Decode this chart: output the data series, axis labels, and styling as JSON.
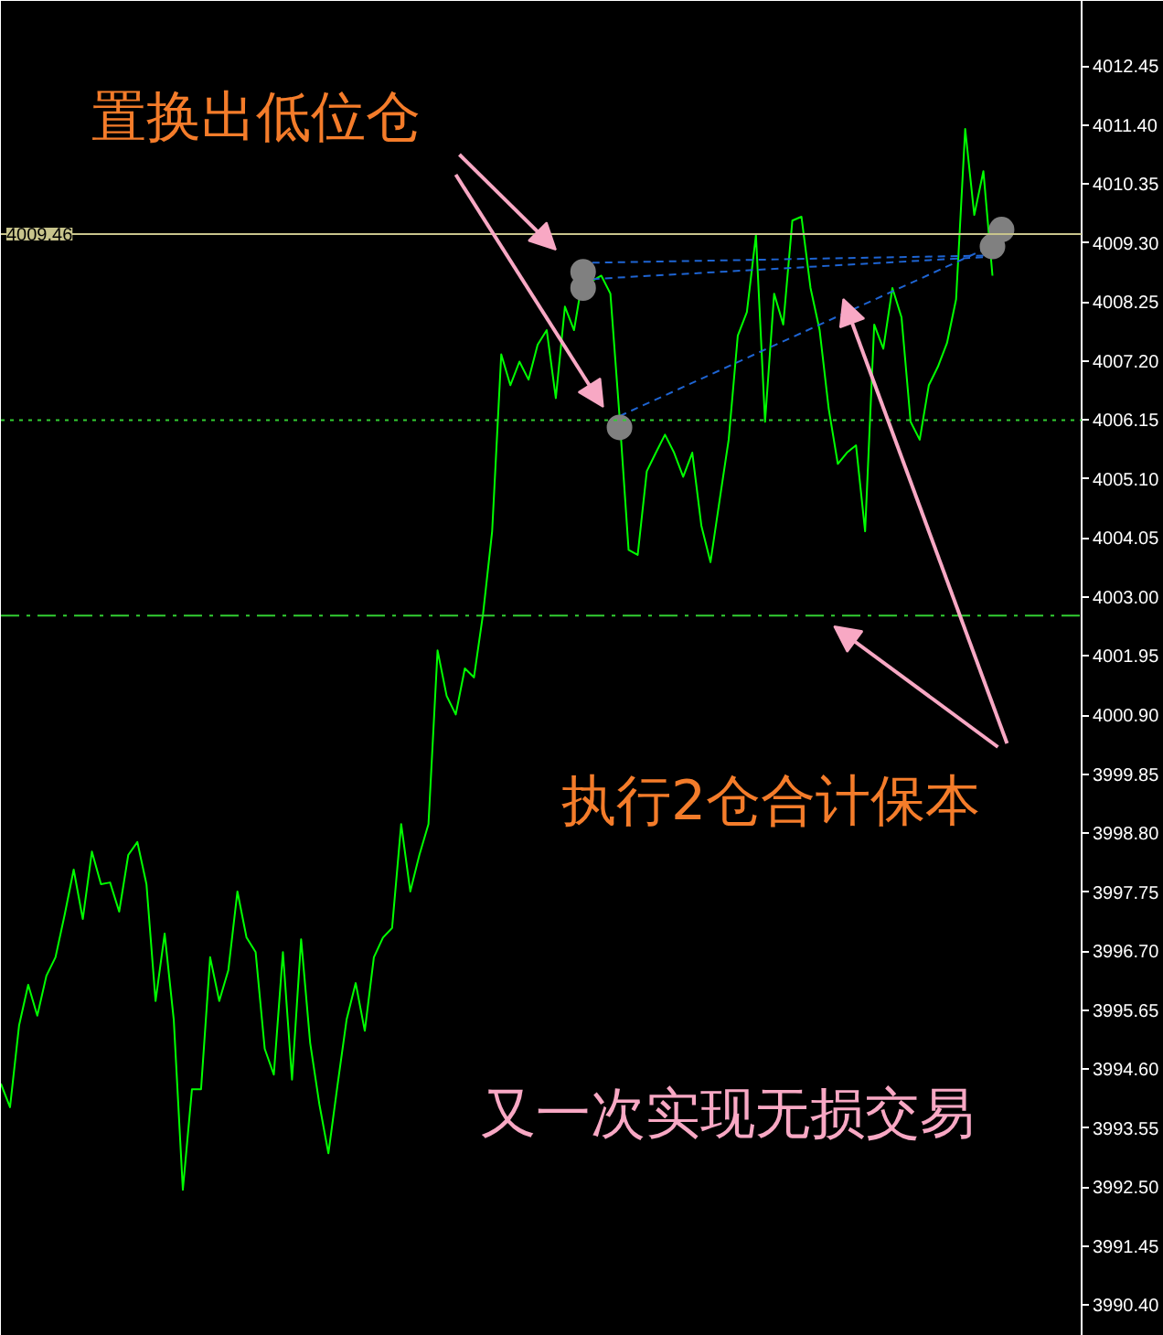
{
  "chart_data": {
    "type": "line",
    "categories": [
      null,
      null,
      null,
      null,
      null,
      null,
      null,
      null,
      null,
      null,
      null,
      null,
      null,
      null,
      null,
      null,
      null,
      null,
      null,
      null,
      null,
      null,
      null,
      null,
      null,
      null,
      null,
      null,
      null,
      null,
      null,
      null,
      null,
      null,
      null,
      null,
      null,
      null,
      null,
      null,
      null,
      null,
      null,
      null,
      null,
      null,
      null,
      null,
      null,
      null,
      null,
      null,
      null,
      null,
      null,
      null,
      null,
      null,
      null,
      null,
      null,
      null,
      null,
      null,
      null,
      null,
      null,
      null,
      null,
      null,
      null,
      null,
      null,
      null,
      null,
      null,
      null,
      null,
      null,
      null,
      null,
      null,
      null,
      null,
      null,
      null,
      null,
      null,
      null,
      null,
      null,
      null,
      null,
      null,
      null,
      null,
      null,
      null,
      null,
      null,
      null,
      null,
      null,
      null,
      null,
      null,
      null,
      null,
      null,
      null,
      null,
      null,
      null,
      null,
      null,
      null,
      null,
      null,
      null
    ],
    "series": [
      {
        "color": "#00ff00",
        "values": [
          3994.34,
          3993.92,
          3995.38,
          3996.1,
          3995.55,
          3996.26,
          3996.59,
          3997.34,
          3998.15,
          3997.27,
          3998.47,
          3997.89,
          3997.92,
          3997.4,
          3998.41,
          3998.64,
          3997.89,
          3995.81,
          3997.01,
          3995.48,
          3992.45,
          3994.24,
          3994.24,
          3996.59,
          3995.81,
          3996.36,
          3997.76,
          3996.94,
          3996.68,
          3994.96,
          3994.5,
          3996.68,
          3994.41,
          3996.91,
          3995.06,
          3993.98,
          3993.1,
          3994.31,
          3995.48,
          3996.13,
          3995.28,
          3996.59,
          3996.94,
          3997.11,
          3998.96,
          3997.76,
          3998.41,
          3998.96,
          4002.05,
          4001.24,
          4000.91,
          4001.73,
          4001.57,
          4002.7,
          4004.17,
          4007.32,
          4006.77,
          4007.19,
          4006.87,
          4007.49,
          4007.75,
          4006.54,
          4008.17,
          4007.75,
          4008.72,
          4008.63,
          4008.72,
          4008.4,
          4006.22,
          4003.84,
          4003.75,
          4005.24,
          4005.57,
          4005.89,
          4005.57,
          4005.14,
          4005.57,
          4004.27,
          4003.62,
          4004.72,
          4005.8,
          4007.65,
          4008.07,
          4009.44,
          4006.12,
          4008.4,
          4007.85,
          4009.7,
          4009.77,
          4008.5,
          4007.75,
          4006.35,
          4005.37,
          4005.57,
          4005.7,
          4004.17,
          4007.85,
          4007.42,
          4008.5,
          4007.98,
          4006.12,
          4005.8,
          4006.77,
          4007.1,
          4007.52,
          4008.3,
          4011.33,
          4009.8,
          4010.58,
          4008.72,
          null,
          null,
          null,
          null,
          null,
          null,
          null,
          null,
          null
        ]
      },
      {
        "type": "line",
        "color": "#1e64d2",
        "line_style": "dashed",
        "values": [
          null,
          null,
          null,
          null,
          null,
          null,
          null,
          null,
          null,
          null,
          null,
          null,
          null,
          null,
          null,
          null,
          null,
          null,
          null,
          null,
          null,
          null,
          null,
          null,
          null,
          null,
          null,
          null,
          null,
          null,
          null,
          null,
          null,
          null,
          null,
          null,
          null,
          null,
          null,
          null,
          null,
          null,
          null,
          null,
          null,
          null,
          null,
          null,
          null,
          null,
          null,
          null,
          null,
          null,
          null,
          null,
          null,
          null,
          null,
          null,
          null,
          null,
          null,
          null,
          null,
          4008.95,
          null,
          null,
          null,
          null,
          null,
          null,
          null,
          null,
          null,
          null,
          null,
          null,
          null,
          null,
          null,
          null,
          null,
          null,
          null,
          null,
          null,
          null,
          null,
          null,
          null,
          null,
          null,
          null,
          null,
          null,
          null,
          null,
          null,
          null,
          null,
          null,
          null,
          null,
          null,
          null,
          null,
          null,
          null,
          4009.08,
          null,
          null,
          null,
          null,
          null,
          null,
          null,
          null,
          null
        ]
      },
      {
        "type": "line",
        "color": "#1e64d2",
        "line_style": "dashed",
        "values": [
          null,
          null,
          null,
          null,
          null,
          null,
          null,
          null,
          null,
          null,
          null,
          null,
          null,
          null,
          null,
          null,
          null,
          null,
          null,
          null,
          null,
          null,
          null,
          null,
          null,
          null,
          null,
          null,
          null,
          null,
          null,
          null,
          null,
          null,
          null,
          null,
          null,
          null,
          null,
          null,
          null,
          null,
          null,
          null,
          null,
          null,
          null,
          null,
          null,
          null,
          null,
          null,
          null,
          null,
          null,
          null,
          null,
          null,
          null,
          null,
          null,
          null,
          null,
          null,
          null,
          4008.66,
          null,
          null,
          null,
          null,
          null,
          null,
          null,
          null,
          null,
          null,
          null,
          null,
          null,
          null,
          null,
          null,
          null,
          null,
          null,
          null,
          null,
          null,
          null,
          null,
          null,
          null,
          null,
          null,
          null,
          null,
          null,
          null,
          null,
          null,
          null,
          null,
          null,
          null,
          null,
          null,
          null,
          null,
          4009.05,
          null,
          null,
          null,
          null,
          null,
          null,
          null,
          null,
          null,
          null
        ]
      },
      {
        "type": "line",
        "color": "#1e64d2",
        "line_style": "dashed",
        "values": [
          null,
          null,
          null,
          null,
          null,
          null,
          null,
          null,
          null,
          null,
          null,
          null,
          null,
          null,
          null,
          null,
          null,
          null,
          null,
          null,
          null,
          null,
          null,
          null,
          null,
          null,
          null,
          null,
          null,
          null,
          null,
          null,
          null,
          null,
          null,
          null,
          null,
          null,
          null,
          null,
          null,
          null,
          null,
          null,
          null,
          null,
          null,
          null,
          null,
          null,
          null,
          null,
          null,
          null,
          null,
          null,
          null,
          null,
          null,
          null,
          null,
          null,
          null,
          null,
          null,
          null,
          null,
          null,
          4006.22,
          null,
          null,
          null,
          null,
          null,
          null,
          null,
          null,
          null,
          null,
          null,
          null,
          null,
          null,
          null,
          null,
          null,
          null,
          null,
          null,
          null,
          null,
          null,
          null,
          null,
          null,
          null,
          null,
          null,
          null,
          null,
          null,
          null,
          null,
          null,
          null,
          null,
          null,
          null,
          4009.18,
          null,
          null,
          null,
          null,
          null,
          null,
          null,
          null,
          null,
          null
        ]
      },
      {
        "type": "scatter",
        "marker": "circle",
        "color": "#808080",
        "values": [
          null,
          null,
          null,
          null,
          null,
          null,
          null,
          null,
          null,
          null,
          null,
          null,
          null,
          null,
          null,
          null,
          null,
          null,
          null,
          null,
          null,
          null,
          null,
          null,
          null,
          null,
          null,
          null,
          null,
          null,
          null,
          null,
          null,
          null,
          null,
          null,
          null,
          null,
          null,
          null,
          null,
          null,
          null,
          null,
          null,
          null,
          null,
          null,
          null,
          null,
          null,
          null,
          null,
          null,
          null,
          null,
          null,
          null,
          null,
          null,
          null,
          null,
          null,
          null,
          4008.79,
          null,
          null,
          null,
          4006.02,
          null,
          null,
          null,
          null,
          null,
          null,
          null,
          null,
          null,
          null,
          null,
          null,
          null,
          null,
          null,
          null,
          null,
          null,
          null,
          null,
          null,
          null,
          null,
          null,
          null,
          null,
          null,
          null,
          null,
          null,
          null,
          null,
          null,
          null,
          null,
          null,
          null,
          null,
          null,
          null,
          null,
          4009.54,
          null,
          null,
          null,
          null,
          null,
          null,
          null,
          null
        ]
      },
      {
        "type": "scatter",
        "marker": "circle",
        "color": "#808080",
        "values": [
          null,
          null,
          null,
          null,
          null,
          null,
          null,
          null,
          null,
          null,
          null,
          null,
          null,
          null,
          null,
          null,
          null,
          null,
          null,
          null,
          null,
          null,
          null,
          null,
          null,
          null,
          null,
          null,
          null,
          null,
          null,
          null,
          null,
          null,
          null,
          null,
          null,
          null,
          null,
          null,
          null,
          null,
          null,
          null,
          null,
          null,
          null,
          null,
          null,
          null,
          null,
          null,
          null,
          null,
          null,
          null,
          null,
          null,
          null,
          null,
          null,
          null,
          null,
          null,
          4008.5,
          null,
          null,
          null,
          null,
          null,
          null,
          null,
          null,
          null,
          null,
          null,
          null,
          null,
          null,
          null,
          null,
          null,
          null,
          null,
          null,
          null,
          null,
          null,
          null,
          null,
          null,
          null,
          null,
          null,
          null,
          null,
          null,
          null,
          null,
          null,
          null,
          null,
          null,
          null,
          null,
          null,
          null,
          null,
          null,
          4009.24,
          null,
          null,
          null,
          null,
          null,
          null,
          null,
          null,
          null
        ]
      }
    ],
    "ylim": [
      3989.85,
      4013.61
    ],
    "yticks": [
      4012.45,
      {
        "value": 4011.4,
        "label": "4011.40"
      },
      4010.35,
      {
        "value": 4009.3,
        "label": "4009.30"
      },
      4008.25,
      {
        "value": 4007.2,
        "label": "4007.20"
      },
      4006.15,
      {
        "value": 4005.1,
        "label": "4005.10"
      },
      4004.05,
      {
        "value": 4003,
        "label": "4003.00"
      },
      4001.95,
      {
        "value": 4000.9,
        "label": "4000.90"
      },
      3999.85,
      {
        "value": 3998.8,
        "label": "3998.80"
      },
      3997.75,
      {
        "value": 3996.7,
        "label": "3996.70"
      },
      3995.65,
      {
        "value": 3994.6,
        "label": "3994.60"
      },
      3993.55,
      {
        "value": 3992.5,
        "label": "3992.50"
      },
      3991.45,
      {
        "value": 3990.4,
        "label": "3990.40"
      }
    ],
    "tick_labels": "y",
    "ref_lines": [
      {
        "axis": "y",
        "value": 4009.46,
        "label": "4009.46",
        "color": "#c8c48c",
        "line_style": "solid"
      },
      {
        "axis": "y",
        "value": 4006.15,
        "color": "#32cd32",
        "line_style": "dotted"
      },
      {
        "axis": "y",
        "value": 4002.67,
        "color": "#32cd32",
        "line_style": "dashdot"
      }
    ],
    "annotations": [
      "置换出低位仓",
      "执行2仓合计保本",
      "又一次实现无损交易"
    ]
  }
}
